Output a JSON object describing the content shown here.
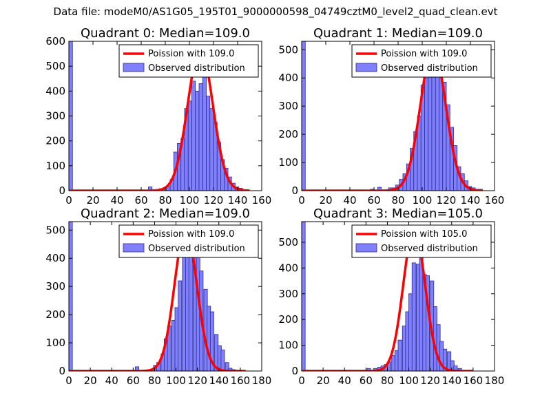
{
  "figure": {
    "suptitle": "Data file: modeM0/AS1G05_195T01_9000000598_04749cztM0_level2_quad_clean.evt"
  },
  "colors": {
    "bar_fill": "#8080ff",
    "bar_edge": "#2a2a8a",
    "curve": "#ff0000",
    "axis": "#000000"
  },
  "chart_data": [
    {
      "type": "bar",
      "title": "Quadrant 0: Median=109.0",
      "legend": {
        "position": "top-right",
        "entries": [
          "Poission with 109.0",
          "Observed distribution"
        ]
      },
      "xlim": [
        0,
        160
      ],
      "ylim": [
        0,
        600
      ],
      "xticks": [
        0,
        20,
        40,
        60,
        80,
        100,
        120,
        140,
        160
      ],
      "yticks": [
        0,
        100,
        200,
        300,
        400,
        500,
        600
      ],
      "bin_width": 3.0,
      "bins": [
        [
          0,
          600
        ],
        [
          57,
          3
        ],
        [
          66,
          15
        ],
        [
          69,
          3
        ],
        [
          72,
          5
        ],
        [
          75,
          8
        ],
        [
          78,
          12
        ],
        [
          81,
          15
        ],
        [
          84,
          45
        ],
        [
          87,
          155
        ],
        [
          90,
          190
        ],
        [
          93,
          210
        ],
        [
          96,
          330
        ],
        [
          99,
          360
        ],
        [
          102,
          440
        ],
        [
          105,
          400
        ],
        [
          108,
          430
        ],
        [
          111,
          460
        ],
        [
          114,
          380
        ],
        [
          117,
          330
        ],
        [
          120,
          275
        ],
        [
          123,
          195
        ],
        [
          126,
          125
        ],
        [
          129,
          90
        ],
        [
          132,
          55
        ],
        [
          135,
          30
        ],
        [
          138,
          15
        ],
        [
          141,
          10
        ],
        [
          144,
          4
        ]
      ],
      "poisson": {
        "lambda": 109.0,
        "peak": 570,
        "range": [
          0,
          150
        ]
      }
    },
    {
      "type": "bar",
      "title": "Quadrant 1: Median=109.0",
      "legend": {
        "position": "top-right",
        "entries": [
          "Poission with 109.0",
          "Observed distribution"
        ]
      },
      "xlim": [
        0,
        160
      ],
      "ylim": [
        0,
        530
      ],
      "xticks": [
        0,
        20,
        40,
        60,
        80,
        100,
        120,
        140,
        160
      ],
      "yticks": [
        0,
        100,
        200,
        300,
        400,
        500
      ],
      "bin_width": 3.0,
      "bins": [
        [
          0,
          530
        ],
        [
          57,
          5
        ],
        [
          63,
          12
        ],
        [
          72,
          10
        ],
        [
          75,
          10
        ],
        [
          78,
          20
        ],
        [
          81,
          40
        ],
        [
          84,
          60
        ],
        [
          87,
          95
        ],
        [
          90,
          150
        ],
        [
          93,
          210
        ],
        [
          96,
          265
        ],
        [
          99,
          375
        ],
        [
          102,
          400
        ],
        [
          105,
          475
        ],
        [
          108,
          405
        ],
        [
          111,
          450
        ],
        [
          114,
          475
        ],
        [
          117,
          385
        ],
        [
          120,
          305
        ],
        [
          123,
          225
        ],
        [
          126,
          160
        ],
        [
          129,
          85
        ],
        [
          132,
          60
        ],
        [
          135,
          35
        ],
        [
          138,
          15
        ],
        [
          141,
          10
        ],
        [
          144,
          5
        ],
        [
          147,
          5
        ]
      ],
      "poisson": {
        "lambda": 109.0,
        "peak": 505,
        "range": [
          0,
          150
        ]
      }
    },
    {
      "type": "bar",
      "title": "Quadrant 2: Median=109.0",
      "legend": {
        "position": "top-right",
        "entries": [
          "Poission with 109.0",
          "Observed distribution"
        ]
      },
      "xlim": [
        0,
        180
      ],
      "ylim": [
        0,
        530
      ],
      "xticks": [
        0,
        20,
        40,
        60,
        80,
        100,
        120,
        140,
        160,
        180
      ],
      "yticks": [
        0,
        100,
        200,
        300,
        400,
        500
      ],
      "bin_width": 3.3,
      "bins": [
        [
          0,
          530
        ],
        [
          62,
          15
        ],
        [
          79,
          20
        ],
        [
          82,
          30
        ],
        [
          86,
          60
        ],
        [
          89,
          115
        ],
        [
          92,
          160
        ],
        [
          96,
          180
        ],
        [
          99,
          225
        ],
        [
          102,
          320
        ],
        [
          106,
          410
        ],
        [
          109,
          420
        ],
        [
          112,
          500
        ],
        [
          116,
          450
        ],
        [
          119,
          500
        ],
        [
          122,
          355
        ],
        [
          126,
          290
        ],
        [
          129,
          230
        ],
        [
          132,
          210
        ],
        [
          136,
          130
        ],
        [
          139,
          90
        ],
        [
          142,
          75
        ],
        [
          146,
          30
        ],
        [
          149,
          10
        ],
        [
          152,
          5
        ]
      ],
      "poisson": {
        "lambda": 109.0,
        "peak": 505,
        "range": [
          0,
          165
        ]
      }
    },
    {
      "type": "bar",
      "title": "Quadrant 3: Median=105.0",
      "legend": {
        "position": "top-right",
        "entries": [
          "Poission with 105.0",
          "Observed distribution"
        ]
      },
      "xlim": [
        0,
        180
      ],
      "ylim": [
        0,
        580
      ],
      "xticks": [
        0,
        20,
        40,
        60,
        80,
        100,
        120,
        140,
        160,
        180
      ],
      "yticks": [
        0,
        100,
        200,
        300,
        400,
        500
      ],
      "bin_width": 3.3,
      "bins": [
        [
          0,
          580
        ],
        [
          61,
          10
        ],
        [
          67,
          10
        ],
        [
          71,
          15
        ],
        [
          74,
          20
        ],
        [
          77,
          25
        ],
        [
          80,
          35
        ],
        [
          84,
          60
        ],
        [
          87,
          80
        ],
        [
          90,
          120
        ],
        [
          94,
          175
        ],
        [
          97,
          230
        ],
        [
          100,
          300
        ],
        [
          103,
          420
        ],
        [
          107,
          415
        ],
        [
          110,
          485
        ],
        [
          113,
          375
        ],
        [
          116,
          370
        ],
        [
          120,
          350
        ],
        [
          123,
          250
        ],
        [
          126,
          180
        ],
        [
          129,
          115
        ],
        [
          132,
          85
        ],
        [
          136,
          75
        ],
        [
          139,
          40
        ],
        [
          142,
          20
        ],
        [
          146,
          10
        ]
      ],
      "poisson": {
        "lambda": 105.0,
        "peak": 550,
        "range": [
          0,
          160
        ]
      }
    }
  ]
}
